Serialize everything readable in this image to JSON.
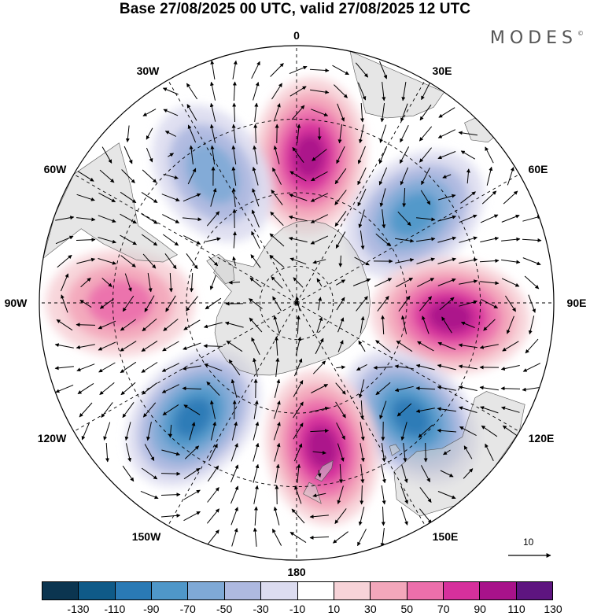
{
  "title": "Base 27/08/2025 00 UTC, valid 27/08/2025 12 UTC",
  "brand": "MODES",
  "brand_mark": "©",
  "longitude_labels": [
    "0",
    "30E",
    "60E",
    "90E",
    "120E",
    "150E",
    "180",
    "150W",
    "120W",
    "90W",
    "60W",
    "30W"
  ],
  "reference_vector_label": "10",
  "colorbar": {
    "ticks": [
      "-130",
      "-110",
      "-90",
      "-70",
      "-50",
      "-30",
      "-10",
      "10",
      "30",
      "50",
      "70",
      "90",
      "110",
      "130"
    ],
    "colors": [
      "#0b3550",
      "#0f5a88",
      "#2a7ab5",
      "#4f97c9",
      "#7fa9d6",
      "#aeb9e0",
      "#dcdcf0",
      "#ffffff",
      "#f7d3d8",
      "#f3a7bb",
      "#ec6fab",
      "#d6309c",
      "#a8128a",
      "#5e1580"
    ]
  },
  "anomaly_centres": [
    {
      "sign": "positive",
      "lon": 5,
      "lat": -50,
      "value": 105
    },
    {
      "sign": "negative",
      "lon": 53,
      "lat": -50,
      "value": -85
    },
    {
      "sign": "positive",
      "lon": 95,
      "lat": -48,
      "value": 110
    },
    {
      "sign": "negative",
      "lon": 135,
      "lat": -46,
      "value": -90
    },
    {
      "sign": "positive",
      "lon": 170,
      "lat": -50,
      "value": 95
    },
    {
      "sign": "negative",
      "lon": -138,
      "lat": -48,
      "value": -95
    },
    {
      "sign": "positive",
      "lon": -90,
      "lat": -42,
      "value": 65
    },
    {
      "sign": "negative",
      "lon": -33,
      "lat": -48,
      "value": -60
    }
  ]
}
